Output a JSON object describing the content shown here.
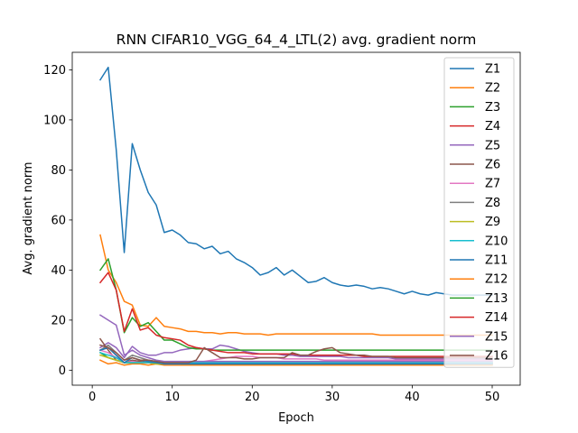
{
  "chart_data": {
    "type": "line",
    "title": "RNN CIFAR10_VGG_64_4_LTL(2) avg. gradient norm",
    "xlabel": "Epoch",
    "ylabel": "Avg. gradient norm",
    "xlim": [
      -2.5,
      53.5
    ],
    "ylim": [
      -6,
      127
    ],
    "xticks": [
      0,
      10,
      20,
      30,
      40,
      50
    ],
    "yticks": [
      0,
      20,
      40,
      60,
      80,
      100,
      120
    ],
    "grid": false,
    "legend_position": "right",
    "x": [
      1,
      2,
      3,
      4,
      5,
      6,
      7,
      8,
      9,
      10,
      11,
      12,
      13,
      14,
      15,
      16,
      17,
      18,
      19,
      20,
      21,
      22,
      23,
      24,
      25,
      26,
      27,
      28,
      29,
      30,
      31,
      32,
      33,
      34,
      35,
      36,
      37,
      38,
      39,
      40,
      41,
      42,
      43,
      44,
      45,
      46,
      47,
      48,
      49,
      50
    ],
    "series": [
      {
        "name": "Z1",
        "color": "#1f77b4",
        "values": [
          116,
          121,
          88,
          47,
          90.5,
          80,
          71,
          66,
          55,
          56,
          54,
          51,
          50.5,
          48.5,
          49.5,
          46.5,
          47.5,
          44.5,
          43,
          41,
          38,
          39,
          41,
          38,
          40,
          37.5,
          35,
          35.5,
          37,
          35,
          34,
          33.5,
          34,
          33.5,
          32.5,
          33,
          32.5,
          31.5,
          30.5,
          31.5,
          30.5,
          30,
          31,
          30.5,
          30,
          30,
          30,
          30,
          30,
          30
        ]
      },
      {
        "name": "Z2",
        "color": "#ff7f0e",
        "values": [
          4,
          2.5,
          3,
          2,
          2.5,
          2.5,
          2,
          2.5,
          2,
          2,
          2,
          2,
          2,
          2,
          2,
          2,
          2,
          2,
          2,
          2,
          2,
          2,
          2,
          2,
          2,
          2,
          2,
          2,
          2,
          2,
          2,
          2,
          2,
          2,
          2,
          2,
          2,
          2,
          2,
          2,
          2,
          2,
          2,
          2,
          2,
          2,
          2,
          2,
          2,
          2
        ]
      },
      {
        "name": "Z3",
        "color": "#2ca02c",
        "values": [
          7,
          5,
          4,
          3,
          3,
          3,
          3,
          2.5,
          2.5,
          2.5,
          2.5,
          2.5,
          2.5,
          2.5,
          2.5,
          2.5,
          2.5,
          2.5,
          2.5,
          2.5,
          2.5,
          2.5,
          2.5,
          2.5,
          2.5,
          2.5,
          2.5,
          2.5,
          2.5,
          2.5,
          2.5,
          2.5,
          2.5,
          2.5,
          2.5,
          2.5,
          2.5,
          2.5,
          2.5,
          2.5,
          2.5,
          2.5,
          2.5,
          2.5,
          2.5,
          2.5,
          2.5,
          2.5,
          2.5,
          2.5
        ]
      },
      {
        "name": "Z4",
        "color": "#d62728",
        "values": [
          8,
          9,
          6,
          3,
          3.5,
          3,
          3,
          3,
          2.5,
          2.5,
          2.5,
          2.5,
          2.5,
          2.5,
          2.5,
          2.5,
          2.5,
          2.5,
          2.5,
          2.5,
          2.5,
          2.5,
          2.5,
          2.5,
          2.5,
          2.5,
          2.5,
          2.5,
          2.5,
          2.5,
          2.5,
          2.5,
          2.5,
          2.5,
          2.5,
          2.5,
          2.5,
          2.5,
          2.5,
          2.5,
          2.5,
          2.5,
          2.5,
          2.5,
          2.5,
          2.5,
          2.5,
          2.5,
          2.5,
          2.5
        ]
      },
      {
        "name": "Z5",
        "color": "#9467bd",
        "values": [
          9,
          11,
          9,
          5,
          9.5,
          7,
          6,
          6,
          7,
          7,
          8,
          8.5,
          9,
          8.5,
          8.5,
          10,
          9.5,
          8.5,
          7.5,
          7,
          6.5,
          6.5,
          6.5,
          6,
          6,
          5.5,
          5.5,
          5.5,
          5.5,
          5.5,
          5.5,
          5,
          5,
          5,
          5,
          5,
          5,
          4.5,
          4.5,
          4.5,
          4.5,
          4.5,
          4.5,
          4.5,
          4.5,
          4.5,
          4.5,
          4.5,
          4.5,
          4.5
        ]
      },
      {
        "name": "Z6",
        "color": "#8c564b",
        "values": [
          12.5,
          8,
          4,
          3,
          4,
          3.5,
          3,
          3,
          2.5,
          2.5,
          2.5,
          2.5,
          2.5,
          2.5,
          2.5,
          2.5,
          2.5,
          2.5,
          2.5,
          2.5,
          2.5,
          2.5,
          2.5,
          2.5,
          2.5,
          2.5,
          2.5,
          2.5,
          2.5,
          2.5,
          2.5,
          2.5,
          2.5,
          2.5,
          2.5,
          2.5,
          2.5,
          2.5,
          2.5,
          2.5,
          2.5,
          2.5,
          2.5,
          2.5,
          2.5,
          2.5,
          2.5,
          2.5,
          2.5,
          2.5
        ]
      },
      {
        "name": "Z7",
        "color": "#e377c2",
        "values": [
          8,
          7,
          5,
          3,
          3.5,
          3,
          3,
          3,
          2.5,
          2.5,
          2.5,
          3,
          3,
          3.5,
          4,
          4.5,
          5,
          5.5,
          5.5,
          5.5,
          5,
          5,
          5,
          4.5,
          4.5,
          4.5,
          4.5,
          4.5,
          4,
          4,
          4,
          4,
          4,
          4,
          4,
          4,
          4,
          4,
          4,
          4,
          4,
          4,
          4,
          4,
          4,
          4,
          4,
          4,
          4,
          4
        ]
      },
      {
        "name": "Z8",
        "color": "#7f7f7f",
        "values": [
          8,
          10,
          7,
          4,
          6,
          5,
          4,
          3.5,
          3,
          3,
          3,
          3,
          3,
          3,
          3,
          3,
          3,
          3,
          3,
          3,
          3,
          3,
          3,
          3,
          3,
          3,
          3,
          3,
          3,
          3,
          3,
          3,
          3,
          3,
          3,
          3,
          3,
          3,
          3,
          3,
          3,
          3,
          3,
          3,
          3,
          3,
          3,
          3,
          3,
          3
        ]
      },
      {
        "name": "Z9",
        "color": "#bcbd22",
        "values": [
          6,
          5,
          4,
          3,
          3,
          3,
          3,
          2.5,
          2.5,
          2.5,
          2.5,
          2.5,
          2.5,
          2.5,
          2.5,
          2.5,
          2.5,
          2.5,
          2.5,
          2.5,
          2.5,
          2.5,
          2.5,
          2.5,
          2.5,
          2.5,
          2.5,
          2.5,
          2.5,
          2.5,
          2.5,
          2.5,
          2.5,
          2.5,
          2.5,
          2.5,
          2.5,
          2.5,
          2.5,
          2.5,
          2.5,
          2.5,
          2.5,
          2.5,
          2.5,
          2.5,
          2.5,
          2.5,
          2.5,
          2.5
        ]
      },
      {
        "name": "Z10",
        "color": "#17becf",
        "values": [
          7,
          6,
          5,
          3,
          3,
          3,
          3,
          3,
          3,
          3,
          3,
          3,
          3,
          3,
          3,
          3,
          3,
          3,
          3,
          3,
          3,
          3,
          3,
          3,
          3,
          3,
          3,
          3,
          3,
          3,
          3,
          3,
          3,
          3,
          3,
          3,
          3,
          3,
          3,
          3,
          3,
          3,
          3,
          3,
          3,
          3,
          3,
          3,
          3,
          3
        ]
      },
      {
        "name": "Z11",
        "color": "#1f77b4",
        "values": [
          8,
          9,
          6,
          3,
          5,
          4,
          3.5,
          3,
          2.5,
          2.5,
          2.5,
          2.5,
          2.5,
          2.5,
          2.5,
          2.5,
          2.5,
          2.5,
          2.5,
          2.5,
          2.5,
          2.5,
          2.5,
          2.5,
          2.5,
          2.5,
          2.5,
          2.5,
          2.5,
          2.5,
          2.5,
          2.5,
          2.5,
          2.5,
          2.5,
          2.5,
          2.5,
          2.5,
          2.5,
          2.5,
          2.5,
          2.5,
          2.5,
          2.5,
          2.5,
          2.5,
          2.5,
          2.5,
          2.5,
          2.5
        ]
      },
      {
        "name": "Z12",
        "color": "#ff7f0e",
        "values": [
          54,
          40,
          35,
          27.5,
          26,
          18,
          17.5,
          21,
          17.5,
          17,
          16.5,
          15.5,
          15.5,
          15,
          15,
          14.5,
          15,
          15,
          14.5,
          14.5,
          14.5,
          14,
          14.5,
          14.5,
          14.5,
          14.5,
          14.5,
          14.5,
          14.5,
          14.5,
          14.5,
          14.5,
          14.5,
          14.5,
          14.5,
          14,
          14,
          14,
          14,
          14,
          14,
          14,
          14,
          14,
          14,
          14,
          14,
          14,
          14,
          14
        ]
      },
      {
        "name": "Z13",
        "color": "#2ca02c",
        "values": [
          40,
          44.5,
          32,
          15,
          21,
          17.5,
          19,
          15.5,
          12,
          12,
          10.5,
          9,
          8.5,
          8.5,
          8,
          8,
          8,
          8,
          8,
          8,
          8,
          8,
          8,
          8,
          8,
          8,
          8,
          8,
          8,
          8,
          8,
          8,
          8,
          8,
          8,
          8,
          8,
          8,
          8,
          8,
          8,
          8,
          8,
          8,
          8,
          8,
          8,
          8,
          8,
          8
        ]
      },
      {
        "name": "Z14",
        "color": "#d62728",
        "values": [
          35,
          39,
          32,
          15.5,
          24.5,
          16,
          17,
          14,
          13,
          12.5,
          12,
          10,
          9,
          8.5,
          8,
          7.5,
          7,
          7,
          7,
          6.5,
          6.5,
          6.5,
          6.5,
          6.5,
          6.5,
          6,
          6,
          6,
          6,
          6,
          6,
          6,
          6,
          5.5,
          5.5,
          5.5,
          5.5,
          5.5,
          5.5,
          5.5,
          5.5,
          5.5,
          5.5,
          5.5,
          5.5,
          5.5,
          5.5,
          5.5,
          5.5,
          5.5
        ]
      },
      {
        "name": "Z15",
        "color": "#9467bd",
        "values": [
          22,
          20,
          18,
          6,
          8,
          6,
          5,
          4,
          3.5,
          3.5,
          3.5,
          3.5,
          3.5,
          3.5,
          3.5,
          3.5,
          3.5,
          3.5,
          3.5,
          3.5,
          3.5,
          3.5,
          3.5,
          3.5,
          3.5,
          3.5,
          3.5,
          3.5,
          3.5,
          3.5,
          3.5,
          3.5,
          3.5,
          3.5,
          3.5,
          3.5,
          3.5,
          3.5,
          3.5,
          3.5,
          3.5,
          3.5,
          3.5,
          3.5,
          3.5,
          3.5,
          3.5,
          3.5,
          3.5,
          3.5
        ]
      },
      {
        "name": "Z16",
        "color": "#8c564b",
        "values": [
          10,
          9,
          7,
          4,
          5,
          4,
          4,
          3.5,
          3,
          3,
          3,
          3,
          4,
          9,
          7,
          5,
          5,
          5,
          4.5,
          4.5,
          5,
          5,
          5,
          5,
          7,
          6,
          6,
          7.5,
          8.5,
          9,
          7,
          6.5,
          6,
          6,
          5.5,
          5.5,
          5.5,
          5,
          5,
          5,
          5,
          5,
          5,
          5,
          5,
          5,
          5,
          5,
          5,
          5
        ]
      }
    ]
  }
}
